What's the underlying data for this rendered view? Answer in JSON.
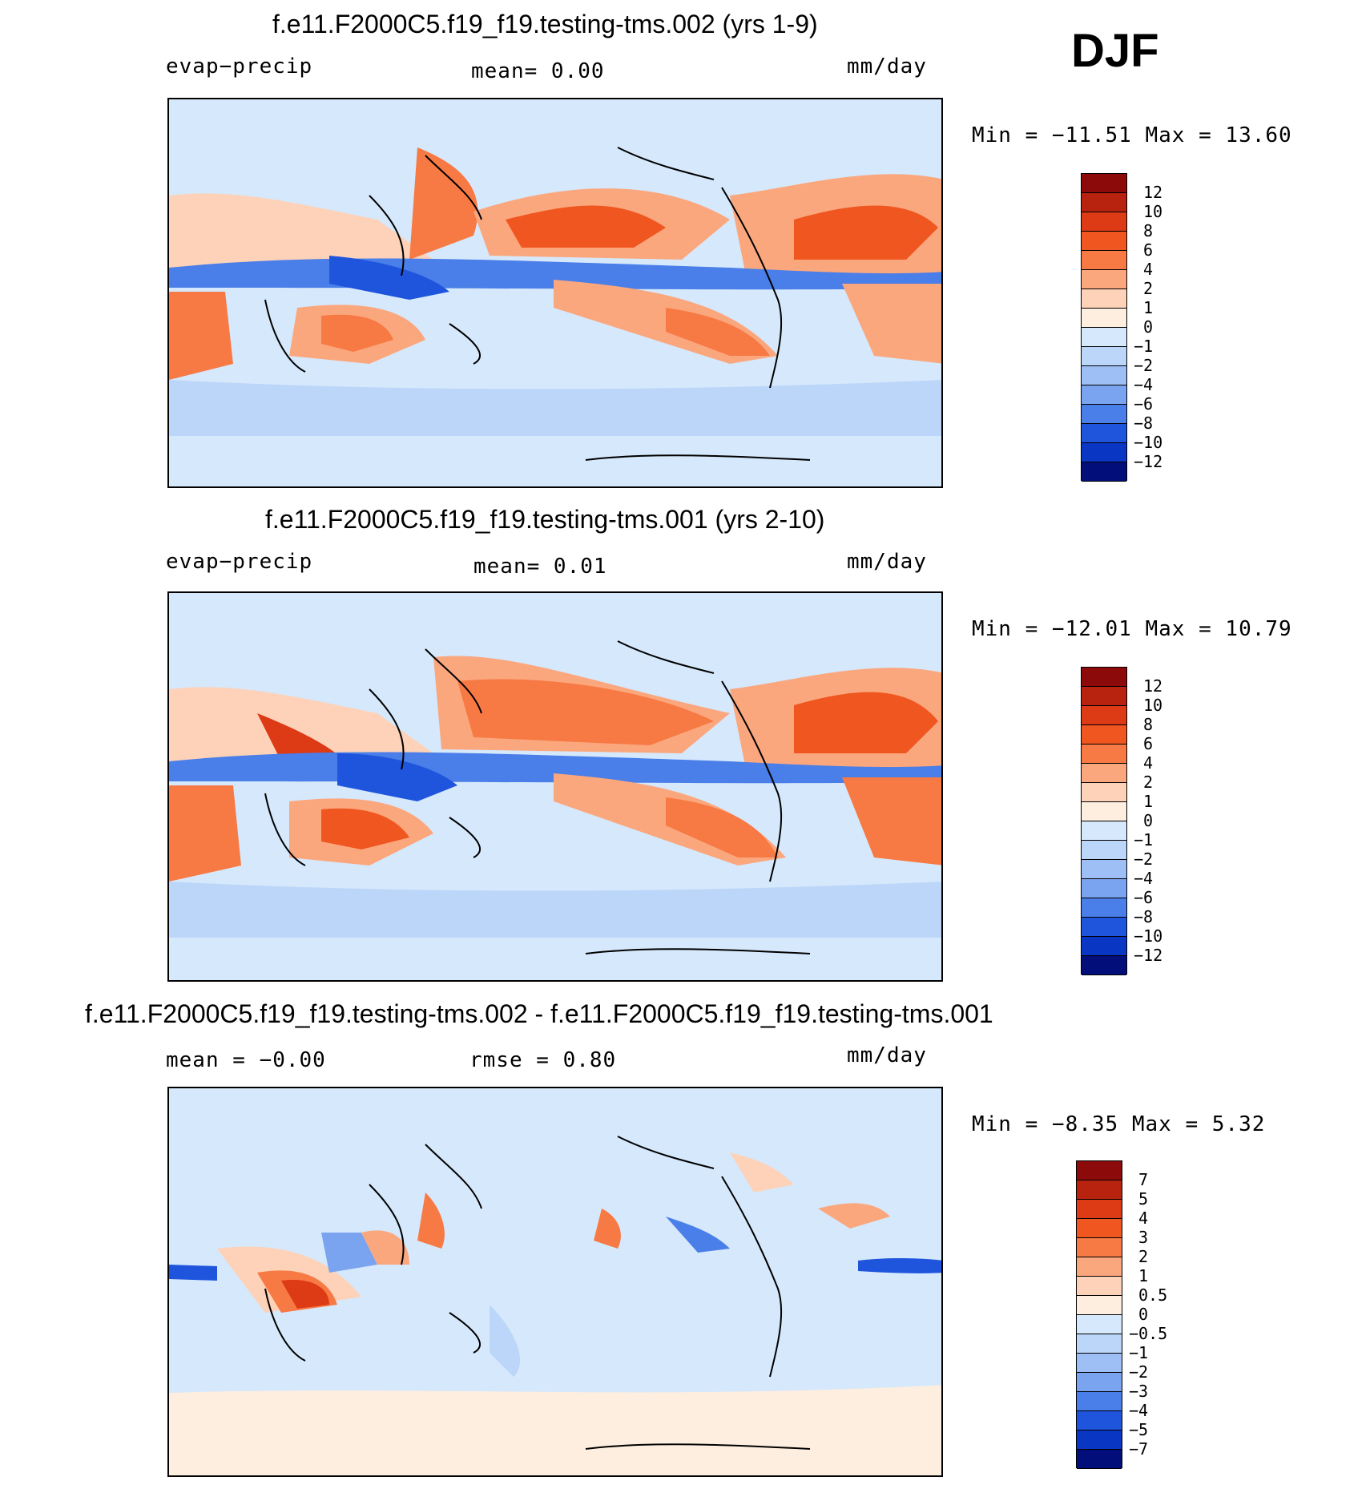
{
  "season": "DJF",
  "panels": [
    {
      "title": "f.e11.F2000C5.f19_f19.testing-tms.002 (yrs 1-9)",
      "left_label": "evap−precip",
      "mid_label": "mean=    0.00",
      "right_label": "mm/day",
      "minmax": "Min = −11.51  Max =   13.60",
      "colorbar_labels": [
        "12",
        "10",
        "8",
        "6",
        "4",
        "2",
        "1",
        "0",
        "−1",
        "−2",
        "−4",
        "−6",
        "−8",
        "−10",
        "−12"
      ]
    },
    {
      "title": "f.e11.F2000C5.f19_f19.testing-tms.001 (yrs 2-10)",
      "left_label": "evap−precip",
      "mid_label": "mean=    0.01",
      "right_label": "mm/day",
      "minmax": "Min = −12.01  Max =   10.79",
      "colorbar_labels": [
        "12",
        "10",
        "8",
        "6",
        "4",
        "2",
        "1",
        "0",
        "−1",
        "−2",
        "−4",
        "−6",
        "−8",
        "−10",
        "−12"
      ]
    },
    {
      "title": "f.e11.F2000C5.f19_f19.testing-tms.002 - f.e11.F2000C5.f19_f19.testing-tms.001",
      "left_label": "mean =  −0.00",
      "mid_label": "rmse =    0.80",
      "right_label": "mm/day",
      "minmax": "Min =   −8.35  Max =    5.32",
      "colorbar_labels": [
        "7",
        "5",
        "4",
        "3",
        "2",
        "1",
        "0.5",
        "0",
        "−0.5",
        "−1",
        "−2",
        "−3",
        "−4",
        "−5",
        "−7"
      ]
    }
  ],
  "colors": {
    "scale": [
      "#8c0a0a",
      "#b8230f",
      "#dd3a16",
      "#f0561f",
      "#f77a45",
      "#fba77e",
      "#fdd2b8",
      "#fdeee0",
      "#d6e8fb",
      "#bcd6fa",
      "#9ebff5",
      "#7aa3f0",
      "#4a7ee8",
      "#1f55dd",
      "#0a36c4",
      "#06229a",
      "#020f7a"
    ]
  },
  "map_images": [
    "world map panel 1",
    "world map panel 2",
    "world map panel 3"
  ]
}
